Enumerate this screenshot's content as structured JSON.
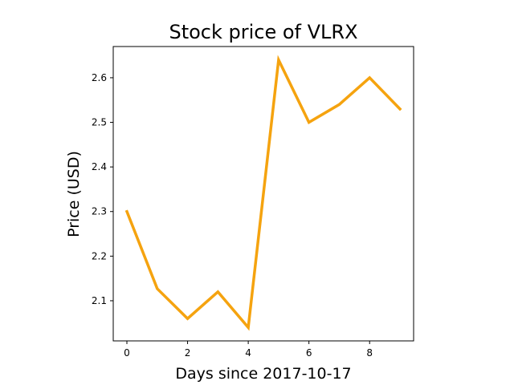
{
  "chart_data": {
    "type": "line",
    "title": "Stock price of VLRX",
    "xlabel": "Days since 2017-10-17",
    "ylabel": "Price (USD)",
    "x": [
      0,
      1,
      2,
      3,
      4,
      5,
      6,
      7,
      8,
      9
    ],
    "series": [
      {
        "color": "#f5a30f",
        "values": [
          2.3,
          2.127,
          2.06,
          2.12,
          2.04,
          2.64,
          2.5,
          2.54,
          2.6,
          2.53
        ]
      }
    ],
    "xlim": [
      -0.45,
      9.45
    ],
    "ylim": [
      2.01,
      2.67
    ],
    "xticks": [
      0,
      2,
      4,
      6,
      8
    ],
    "xtick_labels": [
      "0",
      "2",
      "4",
      "6",
      "8"
    ],
    "yticks": [
      2.1,
      2.2,
      2.3,
      2.4,
      2.5,
      2.6
    ],
    "ytick_labels": [
      "2.1",
      "2.2",
      "2.3",
      "2.4",
      "2.5",
      "2.6"
    ],
    "grid": false,
    "legend": "none"
  }
}
